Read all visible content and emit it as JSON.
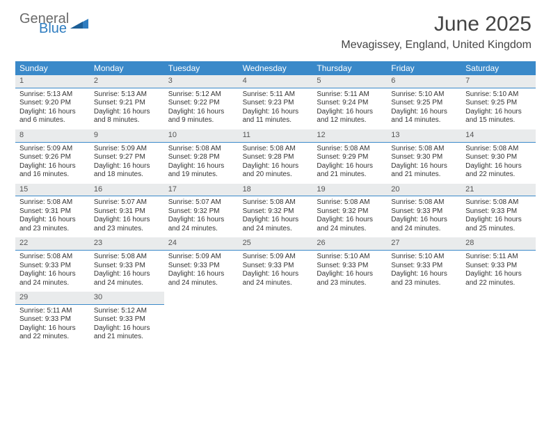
{
  "brand": {
    "part1": "General",
    "part2": "Blue"
  },
  "title": "June 2025",
  "location": "Mevagissey, England, United Kingdom",
  "colors": {
    "header_bg": "#3a89c9",
    "header_text": "#ffffff",
    "daynum_bg": "#e9ebec",
    "daynum_border": "#3a89c9",
    "body_text": "#333333",
    "title_text": "#444444",
    "logo_gray": "#6a6a6a",
    "logo_blue": "#2f7dc0",
    "background": "#ffffff"
  },
  "weekdays": [
    "Sunday",
    "Monday",
    "Tuesday",
    "Wednesday",
    "Thursday",
    "Friday",
    "Saturday"
  ],
  "weeks": [
    [
      {
        "num": "1",
        "sunrise": "Sunrise: 5:13 AM",
        "sunset": "Sunset: 9:20 PM",
        "daylight": "Daylight: 16 hours and 6 minutes."
      },
      {
        "num": "2",
        "sunrise": "Sunrise: 5:13 AM",
        "sunset": "Sunset: 9:21 PM",
        "daylight": "Daylight: 16 hours and 8 minutes."
      },
      {
        "num": "3",
        "sunrise": "Sunrise: 5:12 AM",
        "sunset": "Sunset: 9:22 PM",
        "daylight": "Daylight: 16 hours and 9 minutes."
      },
      {
        "num": "4",
        "sunrise": "Sunrise: 5:11 AM",
        "sunset": "Sunset: 9:23 PM",
        "daylight": "Daylight: 16 hours and 11 minutes."
      },
      {
        "num": "5",
        "sunrise": "Sunrise: 5:11 AM",
        "sunset": "Sunset: 9:24 PM",
        "daylight": "Daylight: 16 hours and 12 minutes."
      },
      {
        "num": "6",
        "sunrise": "Sunrise: 5:10 AM",
        "sunset": "Sunset: 9:25 PM",
        "daylight": "Daylight: 16 hours and 14 minutes."
      },
      {
        "num": "7",
        "sunrise": "Sunrise: 5:10 AM",
        "sunset": "Sunset: 9:25 PM",
        "daylight": "Daylight: 16 hours and 15 minutes."
      }
    ],
    [
      {
        "num": "8",
        "sunrise": "Sunrise: 5:09 AM",
        "sunset": "Sunset: 9:26 PM",
        "daylight": "Daylight: 16 hours and 16 minutes."
      },
      {
        "num": "9",
        "sunrise": "Sunrise: 5:09 AM",
        "sunset": "Sunset: 9:27 PM",
        "daylight": "Daylight: 16 hours and 18 minutes."
      },
      {
        "num": "10",
        "sunrise": "Sunrise: 5:08 AM",
        "sunset": "Sunset: 9:28 PM",
        "daylight": "Daylight: 16 hours and 19 minutes."
      },
      {
        "num": "11",
        "sunrise": "Sunrise: 5:08 AM",
        "sunset": "Sunset: 9:28 PM",
        "daylight": "Daylight: 16 hours and 20 minutes."
      },
      {
        "num": "12",
        "sunrise": "Sunrise: 5:08 AM",
        "sunset": "Sunset: 9:29 PM",
        "daylight": "Daylight: 16 hours and 21 minutes."
      },
      {
        "num": "13",
        "sunrise": "Sunrise: 5:08 AM",
        "sunset": "Sunset: 9:30 PM",
        "daylight": "Daylight: 16 hours and 21 minutes."
      },
      {
        "num": "14",
        "sunrise": "Sunrise: 5:08 AM",
        "sunset": "Sunset: 9:30 PM",
        "daylight": "Daylight: 16 hours and 22 minutes."
      }
    ],
    [
      {
        "num": "15",
        "sunrise": "Sunrise: 5:08 AM",
        "sunset": "Sunset: 9:31 PM",
        "daylight": "Daylight: 16 hours and 23 minutes."
      },
      {
        "num": "16",
        "sunrise": "Sunrise: 5:07 AM",
        "sunset": "Sunset: 9:31 PM",
        "daylight": "Daylight: 16 hours and 23 minutes."
      },
      {
        "num": "17",
        "sunrise": "Sunrise: 5:07 AM",
        "sunset": "Sunset: 9:32 PM",
        "daylight": "Daylight: 16 hours and 24 minutes."
      },
      {
        "num": "18",
        "sunrise": "Sunrise: 5:08 AM",
        "sunset": "Sunset: 9:32 PM",
        "daylight": "Daylight: 16 hours and 24 minutes."
      },
      {
        "num": "19",
        "sunrise": "Sunrise: 5:08 AM",
        "sunset": "Sunset: 9:32 PM",
        "daylight": "Daylight: 16 hours and 24 minutes."
      },
      {
        "num": "20",
        "sunrise": "Sunrise: 5:08 AM",
        "sunset": "Sunset: 9:33 PM",
        "daylight": "Daylight: 16 hours and 24 minutes."
      },
      {
        "num": "21",
        "sunrise": "Sunrise: 5:08 AM",
        "sunset": "Sunset: 9:33 PM",
        "daylight": "Daylight: 16 hours and 25 minutes."
      }
    ],
    [
      {
        "num": "22",
        "sunrise": "Sunrise: 5:08 AM",
        "sunset": "Sunset: 9:33 PM",
        "daylight": "Daylight: 16 hours and 24 minutes."
      },
      {
        "num": "23",
        "sunrise": "Sunrise: 5:08 AM",
        "sunset": "Sunset: 9:33 PM",
        "daylight": "Daylight: 16 hours and 24 minutes."
      },
      {
        "num": "24",
        "sunrise": "Sunrise: 5:09 AM",
        "sunset": "Sunset: 9:33 PM",
        "daylight": "Daylight: 16 hours and 24 minutes."
      },
      {
        "num": "25",
        "sunrise": "Sunrise: 5:09 AM",
        "sunset": "Sunset: 9:33 PM",
        "daylight": "Daylight: 16 hours and 24 minutes."
      },
      {
        "num": "26",
        "sunrise": "Sunrise: 5:10 AM",
        "sunset": "Sunset: 9:33 PM",
        "daylight": "Daylight: 16 hours and 23 minutes."
      },
      {
        "num": "27",
        "sunrise": "Sunrise: 5:10 AM",
        "sunset": "Sunset: 9:33 PM",
        "daylight": "Daylight: 16 hours and 23 minutes."
      },
      {
        "num": "28",
        "sunrise": "Sunrise: 5:11 AM",
        "sunset": "Sunset: 9:33 PM",
        "daylight": "Daylight: 16 hours and 22 minutes."
      }
    ],
    [
      {
        "num": "29",
        "sunrise": "Sunrise: 5:11 AM",
        "sunset": "Sunset: 9:33 PM",
        "daylight": "Daylight: 16 hours and 22 minutes."
      },
      {
        "num": "30",
        "sunrise": "Sunrise: 5:12 AM",
        "sunset": "Sunset: 9:33 PM",
        "daylight": "Daylight: 16 hours and 21 minutes."
      },
      null,
      null,
      null,
      null,
      null
    ]
  ]
}
